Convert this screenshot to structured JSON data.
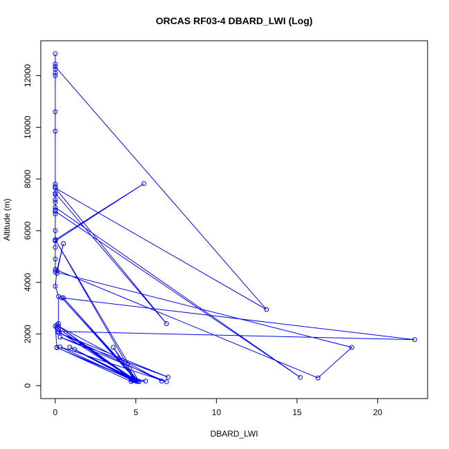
{
  "chart_data": {
    "type": "line",
    "title": "ORCAS RF03-4 DBARD_LWI (Log)",
    "xlabel": "DBARD_LWI",
    "ylabel": "Altitude (m)",
    "xlim": [
      -0.9,
      23.1
    ],
    "ylim": [
      -500,
      13350
    ],
    "xticks": [
      0,
      5,
      10,
      15,
      20
    ],
    "yticks": [
      0,
      2000,
      4000,
      6000,
      8000,
      10000,
      12000
    ],
    "color": "#0000ff",
    "markers": "open-circle",
    "series": [
      {
        "x": [
          0.0,
          0.0,
          0.0,
          0.0,
          0.0,
          0.0,
          0.0,
          0.0,
          0.0,
          0.0,
          0.0,
          0.0,
          13.1,
          0.0,
          6.9,
          0.0,
          0.0,
          0.0,
          0.0,
          0.0,
          15.2,
          0.0,
          0.0,
          0.0,
          5.5,
          0.0,
          0.0,
          0.0,
          0.0,
          16.3,
          18.4,
          0.0,
          0.1,
          0.5,
          0.1,
          0.0,
          0.2,
          0.2,
          0.1,
          0.0,
          0.1,
          4.7,
          5.6,
          4.7,
          0.1,
          4.8,
          0.2,
          6.6,
          0.2,
          7.0,
          0.3,
          6.9,
          0.3,
          4.8,
          0.9,
          5.1,
          3.6,
          4.9,
          1.2,
          5.2,
          0.5,
          5.1,
          0.2,
          4.9,
          0.1,
          5.0,
          0.2,
          22.3,
          0.4,
          5.0,
          0.0,
          5.2
        ],
        "y": [
          12850,
          12450,
          12250,
          12100,
          12000,
          10600,
          9850,
          7800,
          7700,
          7400,
          7200,
          12350,
          2950,
          7650,
          2400,
          7450,
          7100,
          6800,
          6650,
          6750,
          320,
          6900,
          6000,
          5650,
          7820,
          5600,
          5350,
          4900,
          4500,
          300,
          1480,
          4400,
          4350,
          5500,
          4450,
          3850,
          3450,
          2400,
          2250,
          2300,
          1480,
          160,
          180,
          270,
          1470,
          220,
          2300,
          180,
          2050,
          330,
          1880,
          150,
          1500,
          200,
          1490,
          160,
          1480,
          200,
          1400,
          160,
          3400,
          170,
          2200,
          200,
          2350,
          180,
          2100,
          1780,
          3400,
          220,
          5650,
          160
        ]
      }
    ]
  }
}
